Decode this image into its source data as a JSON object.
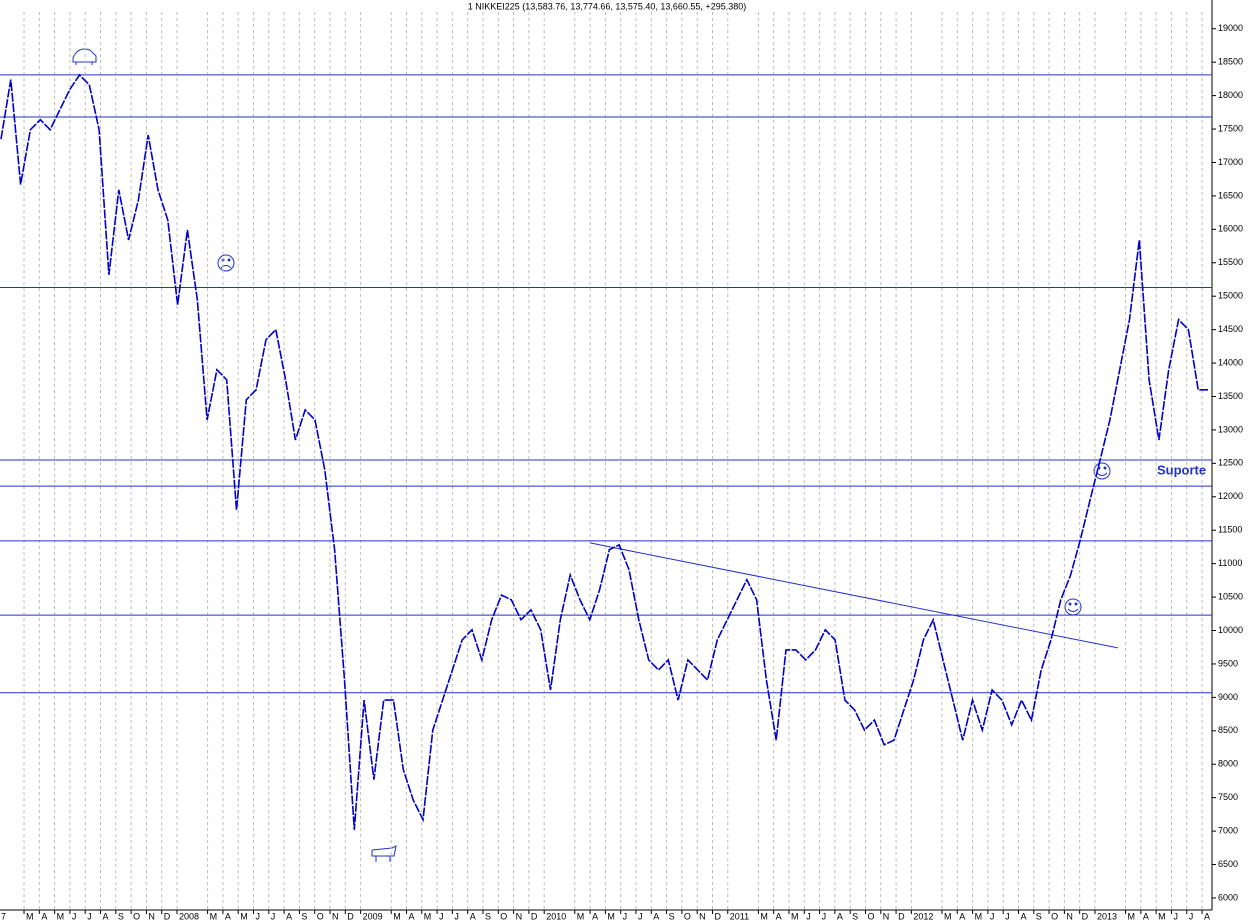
{
  "chart_data": {
    "type": "line",
    "title": "1 NIKKEI225 (13,583.76, 13,774.66, 13,575.40, 13,660.55, +295.380)",
    "series": [
      {
        "name": "NIKKEI225",
        "color": "#0000cc",
        "values": [
          17350,
          18240,
          16670,
          17490,
          17640,
          17490,
          17790,
          18090,
          18310,
          18160,
          17490,
          15320,
          16590,
          15840,
          16440,
          17410,
          16590,
          16140,
          14870,
          15990,
          14950,
          13150,
          13900,
          13750,
          11800,
          13450,
          13600,
          14350,
          14500,
          13750,
          12850,
          13300,
          13150,
          12400,
          11210,
          9260,
          7020,
          8960,
          7770,
          8960,
          8960,
          7920,
          7470,
          7170,
          8510,
          8960,
          9410,
          9860,
          10010,
          9560,
          10160,
          10530,
          10460,
          10160,
          10310,
          10010,
          9110,
          10160,
          10830,
          10460,
          10160,
          10610,
          11210,
          11280,
          10910,
          10160,
          9560,
          9410,
          9560,
          8960,
          9560,
          9410,
          9260,
          9860,
          10160,
          10460,
          10760,
          10460,
          9260,
          8360,
          9710,
          9710,
          9560,
          9710,
          10010,
          9860,
          8960,
          8810,
          8510,
          8660,
          8290,
          8360,
          8810,
          9260,
          9860,
          10160,
          9560,
          8960,
          8360,
          8960,
          8510,
          9110,
          8960,
          8590,
          8960,
          8660,
          9410,
          9860,
          10460,
          10830,
          11360,
          11960,
          12550,
          13150,
          13900,
          14650,
          15840,
          13750,
          12850,
          13900,
          14650,
          14500,
          13600,
          13600
        ]
      }
    ],
    "xlim": [
      0.43,
      79.65
    ],
    "xticks": [
      {
        "value": 0,
        "label": "7"
      },
      {
        "value": 2,
        "label": "M"
      },
      {
        "value": 3,
        "label": "A"
      },
      {
        "value": 4,
        "label": "M"
      },
      {
        "value": 5,
        "label": "J"
      },
      {
        "value": 6,
        "label": "J"
      },
      {
        "value": 7,
        "label": "A"
      },
      {
        "value": 8,
        "label": "S"
      },
      {
        "value": 9,
        "label": "O"
      },
      {
        "value": 10,
        "label": "N"
      },
      {
        "value": 11,
        "label": "D"
      },
      {
        "value": 12,
        "label": "2008"
      },
      {
        "value": 14,
        "label": "M"
      },
      {
        "value": 15,
        "label": "A"
      },
      {
        "value": 16,
        "label": "M"
      },
      {
        "value": 17,
        "label": "J"
      },
      {
        "value": 18,
        "label": "J"
      },
      {
        "value": 19,
        "label": "A"
      },
      {
        "value": 20,
        "label": "S"
      },
      {
        "value": 21,
        "label": "O"
      },
      {
        "value": 22,
        "label": "N"
      },
      {
        "value": 23,
        "label": "D"
      },
      {
        "value": 24,
        "label": "2009"
      },
      {
        "value": 26,
        "label": "M"
      },
      {
        "value": 27,
        "label": "A"
      },
      {
        "value": 28,
        "label": "M"
      },
      {
        "value": 29,
        "label": "J"
      },
      {
        "value": 30,
        "label": "J"
      },
      {
        "value": 31,
        "label": "A"
      },
      {
        "value": 32,
        "label": "S"
      },
      {
        "value": 33,
        "label": "O"
      },
      {
        "value": 34,
        "label": "N"
      },
      {
        "value": 35,
        "label": "D"
      },
      {
        "value": 36,
        "label": "2010"
      },
      {
        "value": 38,
        "label": "M"
      },
      {
        "value": 39,
        "label": "A"
      },
      {
        "value": 40,
        "label": "M"
      },
      {
        "value": 41,
        "label": "J"
      },
      {
        "value": 42,
        "label": "J"
      },
      {
        "value": 43,
        "label": "A"
      },
      {
        "value": 44,
        "label": "S"
      },
      {
        "value": 45,
        "label": "O"
      },
      {
        "value": 46,
        "label": "N"
      },
      {
        "value": 47,
        "label": "D"
      },
      {
        "value": 48,
        "label": "2011"
      },
      {
        "value": 50,
        "label": "M"
      },
      {
        "value": 51,
        "label": "A"
      },
      {
        "value": 52,
        "label": "M"
      },
      {
        "value": 53,
        "label": "J"
      },
      {
        "value": 54,
        "label": "J"
      },
      {
        "value": 55,
        "label": "A"
      },
      {
        "value": 56,
        "label": "S"
      },
      {
        "value": 57,
        "label": "O"
      },
      {
        "value": 58,
        "label": "N"
      },
      {
        "value": 59,
        "label": "D"
      },
      {
        "value": 60,
        "label": "2012"
      },
      {
        "value": 62,
        "label": "M"
      },
      {
        "value": 63,
        "label": "A"
      },
      {
        "value": 64,
        "label": "M"
      },
      {
        "value": 65,
        "label": "J"
      },
      {
        "value": 66,
        "label": "J"
      },
      {
        "value": 67,
        "label": "A"
      },
      {
        "value": 68,
        "label": "S"
      },
      {
        "value": 69,
        "label": "O"
      },
      {
        "value": 70,
        "label": "N"
      },
      {
        "value": 71,
        "label": "D"
      },
      {
        "value": 72,
        "label": "2013"
      },
      {
        "value": 74,
        "label": "M"
      },
      {
        "value": 75,
        "label": "A"
      },
      {
        "value": 76,
        "label": "M"
      },
      {
        "value": 77,
        "label": "J"
      },
      {
        "value": 78,
        "label": "J"
      },
      {
        "value": 79,
        "label": "A"
      }
    ],
    "ylim": [
      5820,
      19430
    ],
    "yticks": [
      6000,
      6500,
      7000,
      7500,
      8000,
      8500,
      9000,
      9500,
      10000,
      10500,
      11000,
      11500,
      12000,
      12500,
      13000,
      13500,
      14000,
      14500,
      15000,
      15500,
      16000,
      16500,
      17000,
      17500,
      18000,
      18500,
      19000
    ],
    "grid": true,
    "hlines": [
      18310,
      17680,
      15130,
      12550,
      12160,
      11340,
      10230,
      9070
    ],
    "trendline": {
      "x": [
        39,
        73.5
      ],
      "values": [
        11310,
        9740
      ]
    },
    "annotation": "Suporte"
  }
}
